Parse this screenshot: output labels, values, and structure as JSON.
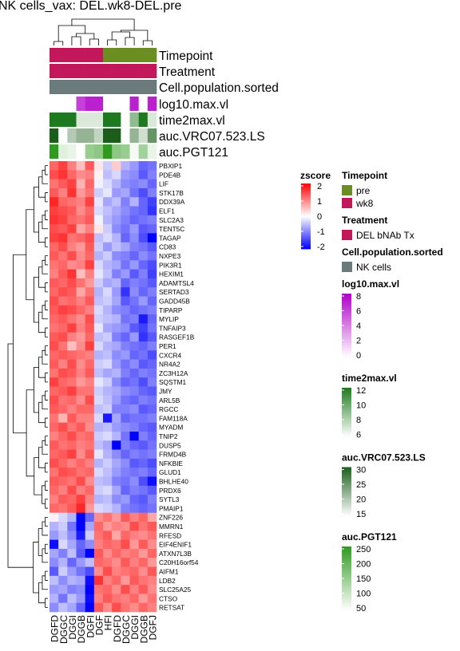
{
  "chart_data": {
    "type": "heatmap",
    "title": "NK cells_vax: DEL.wk8-DEL.pre",
    "columns": [
      "DGFD",
      "DGGC",
      "DGGI",
      "DGGB",
      "DGFI",
      "DGFJ",
      "DGFD",
      "DGGC",
      "DGGI",
      "DGGB",
      "DGFI",
      "DGFJ"
    ],
    "column_labels_shown": [
      "DGFD",
      "DGGC",
      "DGGI",
      "DGGB",
      "DGFI",
      "DGF",
      "HFI",
      "DGFD",
      "DGGC",
      "DGGI",
      "DGGB",
      "DGFJ"
    ],
    "rows": [
      "PBXIP1",
      "PDE4B",
      "LIF",
      "STK17B",
      "DDX39A",
      "ELF1",
      "SLC2A3",
      "TENT5C",
      "TAGAP",
      "CD83",
      "NXPE3",
      "PIK3R1",
      "HEXIM1",
      "ADAMTSL4",
      "SERTAD3",
      "GADD45B",
      "TIPARP",
      "MYLIP",
      "TNFAIP3",
      "RASGEF1B",
      "PER1",
      "CXCR4",
      "NR4A2",
      "ZC3H12A",
      "SQSTM1",
      "JMY",
      "ARL5B",
      "RGCC",
      "FAM118A",
      "MYADM",
      "TNIP2",
      "DUSP5",
      "FRMD4B",
      "NFKBIE",
      "GLUD1",
      "BHLHE40",
      "PRDX6",
      "SYTL3",
      "PMAIP1",
      "ZNF226",
      "MMRN1",
      "RFESD",
      "EIF4ENIF1",
      "ATXN7L3B",
      "C20H16orf54",
      "AIFM1",
      "LDB2",
      "SLC25A25",
      "CTSO",
      "RETSAT"
    ],
    "zscore": [
      [
        1.2,
        1.5,
        1.0,
        0.5,
        1.3,
        0.2,
        -0.4,
        0.4,
        -0.6,
        -0.8,
        -1.2,
        -1.1
      ],
      [
        1.4,
        1.6,
        1.2,
        0.9,
        1.0,
        0.1,
        -0.5,
        -0.3,
        -0.8,
        -0.9,
        -1.3,
        -1.0
      ],
      [
        1.1,
        1.3,
        1.5,
        0.6,
        1.2,
        -0.1,
        -0.3,
        -0.6,
        -0.9,
        -1.0,
        -0.9,
        -1.2
      ],
      [
        1.3,
        1.0,
        1.6,
        0.8,
        1.1,
        -0.4,
        -0.2,
        -0.8,
        -0.7,
        -1.1,
        -1.4,
        -1.0
      ],
      [
        1.7,
        1.2,
        1.1,
        1.0,
        1.5,
        -0.2,
        -0.7,
        -0.5,
        -1.0,
        -0.6,
        -1.2,
        -1.5
      ],
      [
        1.5,
        1.4,
        1.3,
        0.9,
        1.2,
        -0.3,
        -0.5,
        -0.7,
        -0.9,
        -1.1,
        -1.2,
        -1.6
      ],
      [
        1.6,
        1.5,
        1.2,
        1.1,
        1.3,
        -0.1,
        -0.6,
        -0.8,
        -1.0,
        -1.2,
        -1.1,
        -1.0
      ],
      [
        1.4,
        1.3,
        1.5,
        0.7,
        1.0,
        0.2,
        -0.4,
        -0.9,
        -1.1,
        -0.8,
        -1.3,
        -1.2
      ],
      [
        1.5,
        1.6,
        1.1,
        1.2,
        1.4,
        -0.5,
        -0.3,
        -0.6,
        -1.2,
        -0.9,
        -1.4,
        -2.0
      ],
      [
        1.2,
        1.4,
        1.0,
        0.8,
        1.3,
        -0.4,
        -0.8,
        -0.5,
        -0.7,
        -1.0,
        -1.1,
        -1.3
      ],
      [
        1.3,
        1.1,
        1.4,
        0.9,
        1.2,
        -0.6,
        -0.4,
        -0.9,
        -1.0,
        -1.2,
        -0.9,
        -1.1
      ],
      [
        1.1,
        1.2,
        0.9,
        1.0,
        1.5,
        -0.3,
        -0.6,
        -0.7,
        -1.1,
        -0.8,
        -1.2,
        -1.4
      ],
      [
        1.0,
        1.3,
        1.6,
        0.5,
        1.0,
        -0.2,
        -0.5,
        -1.0,
        -0.8,
        -1.3,
        -1.0,
        -1.5
      ],
      [
        1.3,
        1.2,
        1.4,
        1.1,
        0.8,
        -0.4,
        -0.7,
        -0.6,
        -1.2,
        -1.0,
        -1.1,
        -1.3
      ],
      [
        1.2,
        1.4,
        1.3,
        0.7,
        1.1,
        -0.6,
        -0.3,
        -0.8,
        -1.6,
        -0.9,
        -1.2,
        -1.0
      ],
      [
        1.4,
        1.1,
        1.2,
        1.0,
        1.3,
        -0.5,
        -0.4,
        -0.7,
        -1.3,
        -1.1,
        -0.8,
        -1.2
      ],
      [
        1.3,
        1.5,
        1.4,
        1.2,
        1.0,
        -0.3,
        -0.6,
        -0.9,
        -1.0,
        -1.2,
        -1.1,
        -1.0
      ],
      [
        1.2,
        1.3,
        1.1,
        0.9,
        1.4,
        -0.4,
        -0.5,
        -0.6,
        -1.1,
        -1.0,
        -1.8,
        -1.2
      ],
      [
        1.1,
        1.2,
        1.5,
        1.0,
        1.3,
        -0.2,
        -0.7,
        -0.8,
        -0.9,
        -1.3,
        -1.5,
        -1.1
      ],
      [
        1.3,
        1.4,
        1.0,
        0.8,
        1.2,
        -0.5,
        -0.4,
        -1.0,
        -1.2,
        -0.8,
        -1.6,
        -1.3
      ],
      [
        1.4,
        1.1,
        0.5,
        0.9,
        1.5,
        -0.3,
        -0.6,
        -0.7,
        -1.0,
        -1.1,
        -1.2,
        -1.0
      ],
      [
        1.2,
        1.3,
        1.2,
        1.1,
        1.0,
        -0.6,
        -0.5,
        -0.9,
        -0.8,
        -1.2,
        -1.1,
        -1.4
      ],
      [
        1.3,
        1.0,
        1.4,
        0.9,
        1.2,
        -0.4,
        -0.3,
        -0.8,
        -1.1,
        -0.9,
        -1.3,
        -1.2
      ],
      [
        1.1,
        1.4,
        1.3,
        1.0,
        1.3,
        -0.5,
        -0.7,
        -0.6,
        -1.0,
        -1.2,
        -1.0,
        -1.1
      ],
      [
        1.5,
        1.2,
        1.1,
        0.8,
        1.0,
        -0.2,
        -0.4,
        -0.9,
        -1.2,
        -1.1,
        -1.4,
        -1.0
      ],
      [
        1.2,
        1.3,
        1.5,
        1.1,
        1.1,
        -0.4,
        -0.6,
        -0.7,
        -0.9,
        -1.0,
        -1.2,
        -1.3
      ],
      [
        1.4,
        1.1,
        1.2,
        0.9,
        1.4,
        -0.3,
        -0.5,
        -0.8,
        -1.1,
        -1.2,
        -1.0,
        -1.1
      ],
      [
        1.3,
        1.2,
        1.0,
        1.2,
        1.2,
        -0.5,
        -0.4,
        -1.0,
        -1.0,
        -0.9,
        -1.3,
        -1.2
      ],
      [
        1.1,
        0.6,
        1.3,
        1.0,
        1.0,
        -0.3,
        -1.8,
        -0.7,
        -1.2,
        -1.1,
        -1.1,
        -1.0
      ],
      [
        1.2,
        1.4,
        1.1,
        1.3,
        0.9,
        -0.6,
        -0.5,
        -0.8,
        -0.9,
        -1.0,
        -1.2,
        -1.3
      ],
      [
        1.0,
        1.2,
        1.4,
        1.1,
        1.2,
        -0.4,
        -0.3,
        -0.6,
        -1.1,
        -2.0,
        -1.0,
        -1.2
      ],
      [
        1.3,
        1.1,
        1.2,
        1.0,
        1.1,
        -0.5,
        -0.7,
        -2.0,
        -1.0,
        -1.2,
        -1.3,
        -1.1
      ],
      [
        1.2,
        1.3,
        1.5,
        0.9,
        1.3,
        -0.2,
        -0.6,
        -0.9,
        -1.2,
        -1.0,
        -1.1,
        -1.0
      ],
      [
        1.4,
        1.2,
        1.0,
        1.2,
        1.0,
        -0.6,
        -0.4,
        -0.7,
        -0.9,
        -1.3,
        -1.2,
        -1.4
      ],
      [
        1.1,
        1.4,
        1.3,
        1.1,
        1.2,
        -0.3,
        -0.5,
        -0.8,
        -1.0,
        -1.1,
        -1.0,
        -1.2
      ],
      [
        1.3,
        1.2,
        1.1,
        1.4,
        0.9,
        -0.5,
        -0.6,
        -1.0,
        -1.1,
        -0.9,
        -1.4,
        -1.9
      ],
      [
        1.2,
        1.0,
        1.4,
        1.0,
        1.2,
        -0.4,
        -0.3,
        -0.7,
        -1.2,
        -1.0,
        -1.1,
        -1.3
      ],
      [
        1.0,
        1.3,
        1.2,
        1.5,
        1.0,
        -0.6,
        -0.5,
        -0.9,
        -0.8,
        -1.2,
        -1.3,
        -1.0
      ],
      [
        1.2,
        1.1,
        1.3,
        1.7,
        0.8,
        -0.3,
        -0.4,
        -0.6,
        -1.0,
        -1.1,
        -1.2,
        -1.1
      ],
      [
        0.1,
        -0.3,
        -0.6,
        -2.0,
        -1.2,
        0.9,
        1.1,
        0.8,
        1.3,
        1.0,
        1.2,
        0.7
      ],
      [
        -0.6,
        -0.4,
        -1.1,
        -2.0,
        -0.7,
        1.2,
        0.8,
        1.0,
        0.9,
        1.4,
        1.1,
        1.3
      ],
      [
        -0.8,
        -0.5,
        -0.9,
        -1.8,
        -0.4,
        1.1,
        1.3,
        0.7,
        1.2,
        1.0,
        0.9,
        1.1
      ],
      [
        -1.9,
        -0.3,
        -0.7,
        -1.2,
        -0.9,
        1.0,
        1.2,
        1.1,
        1.4,
        0.8,
        1.3,
        0.9
      ],
      [
        -0.7,
        -1.0,
        -0.5,
        -1.3,
        -2.0,
        1.3,
        0.9,
        1.2,
        1.0,
        1.1,
        0.8,
        1.2
      ],
      [
        -0.9,
        -0.6,
        -1.2,
        -0.8,
        -0.5,
        1.2,
        1.1,
        0.9,
        1.3,
        1.0,
        1.2,
        0.8
      ],
      [
        -1.3,
        -0.4,
        -0.8,
        -1.1,
        -1.4,
        0.9,
        1.4,
        1.0,
        1.1,
        1.2,
        0.9,
        1.3
      ],
      [
        -0.5,
        -0.9,
        -0.6,
        -0.7,
        -1.9,
        1.6,
        1.0,
        1.2,
        0.8,
        1.3,
        1.1,
        1.0
      ],
      [
        -0.8,
        -0.7,
        -1.0,
        -0.9,
        -2.0,
        1.1,
        1.2,
        0.9,
        1.4,
        1.0,
        1.3,
        0.9
      ],
      [
        -0.6,
        -1.1,
        -0.5,
        -0.8,
        -1.9,
        1.0,
        1.3,
        1.1,
        1.0,
        1.2,
        0.8,
        1.1
      ],
      [
        -0.9,
        -0.5,
        -0.7,
        -1.2,
        -2.0,
        1.3,
        0.9,
        1.4,
        1.1,
        0.9,
        1.2,
        1.0
      ]
    ],
    "annotations": {
      "Timepoint": [
        "wk8",
        "wk8",
        "wk8",
        "wk8",
        "wk8",
        "wk8",
        "pre",
        "pre",
        "pre",
        "pre",
        "pre",
        "pre"
      ],
      "Treatment": [
        "DEL bNAb Tx",
        "DEL bNAb Tx",
        "DEL bNAb Tx",
        "DEL bNAb Tx",
        "DEL bNAb Tx",
        "DEL bNAb Tx",
        "DEL bNAb Tx",
        "DEL bNAb Tx",
        "DEL bNAb Tx",
        "DEL bNAb Tx",
        "DEL bNAb Tx",
        "DEL bNAb Tx"
      ],
      "Cell.population.sorted": [
        "NK cells",
        "NK cells",
        "NK cells",
        "NK cells",
        "NK cells",
        "NK cells",
        "NK cells",
        "NK cells",
        "NK cells",
        "NK cells",
        "NK cells",
        "NK cells"
      ],
      "log10.max.vl": [
        0,
        0,
        0,
        6,
        7,
        7,
        0,
        0,
        0,
        7,
        0,
        7
      ],
      "time2max.vl": [
        12,
        12,
        12,
        7,
        7,
        7,
        12,
        12,
        6,
        9,
        12,
        7
      ],
      "auc.VRC07.523.LS": [
        30,
        15,
        20,
        22,
        22,
        19,
        30,
        30,
        15,
        22,
        18,
        25
      ],
      "auc.PGT121": [
        250,
        80,
        70,
        50,
        150,
        160,
        250,
        160,
        150,
        60,
        140,
        70
      ]
    },
    "annotation_order": [
      "Timepoint",
      "Treatment",
      "Cell.population.sorted",
      "log10.max.vl",
      "time2max.vl",
      "auc.VRC07.523.LS",
      "auc.PGT121"
    ],
    "zscore_scale": {
      "title": "zscore",
      "ticks": [
        2,
        1,
        0,
        -1,
        -2
      ],
      "colors": {
        "low": "#0000ff",
        "mid": "#ffffff",
        "high": "#ff0000"
      }
    },
    "legends": [
      {
        "title": "Timepoint",
        "type": "discrete",
        "entries": [
          {
            "label": "pre",
            "color": "#6b8e23"
          },
          {
            "label": "wk8",
            "color": "#c2185b"
          }
        ]
      },
      {
        "title": "Treatment",
        "type": "discrete",
        "entries": [
          {
            "label": "DEL bNAb Tx",
            "color": "#c2185b"
          }
        ]
      },
      {
        "title": "Cell.population.sorted",
        "type": "discrete",
        "entries": [
          {
            "label": "NK cells",
            "color": "#6b7b7b"
          }
        ]
      },
      {
        "title": "log10.max.vl",
        "type": "continuous",
        "ticks": [
          8,
          6,
          4,
          2,
          0
        ],
        "range": [
          0,
          8
        ],
        "color": "#b000c8"
      },
      {
        "title": "time2max.vl",
        "type": "continuous",
        "ticks": [
          12,
          10,
          8,
          6
        ],
        "range": [
          6,
          12
        ],
        "color": "#1e7a1e"
      },
      {
        "title": "auc.VRC07.523.LS",
        "type": "continuous",
        "ticks": [
          30,
          25,
          20,
          15
        ],
        "range": [
          15,
          30
        ],
        "color": "#1a5e1a"
      },
      {
        "title": "auc.PGT121",
        "type": "continuous",
        "ticks": [
          250,
          200,
          150,
          100,
          50
        ],
        "range": [
          50,
          250
        ],
        "color": "#2e9a1e"
      }
    ]
  }
}
